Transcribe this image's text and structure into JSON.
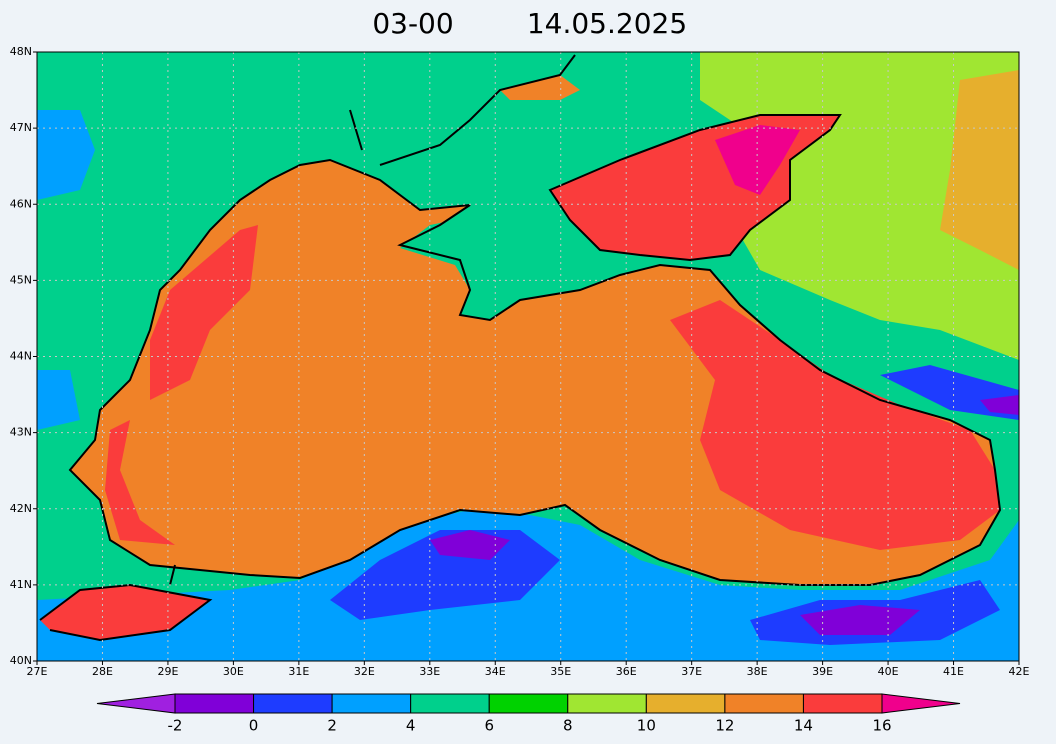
{
  "title": {
    "time": "03-00",
    "date": "14.05.2025"
  },
  "map": {
    "lat_labels": [
      "48N",
      "47N",
      "46N",
      "45N",
      "44N",
      "43N",
      "42N",
      "41N",
      "40N"
    ],
    "lon_labels": [
      "27E",
      "28E",
      "29E",
      "30E",
      "31E",
      "32E",
      "33E",
      "34E",
      "35E",
      "36E",
      "37E",
      "38E",
      "39E",
      "40E",
      "41E",
      "42E"
    ]
  },
  "colorbar": {
    "labels": [
      "-2",
      "0",
      "2",
      "4",
      "6",
      "8",
      "10",
      "12",
      "14",
      "16"
    ],
    "colors": [
      "#a020e0",
      "#8000d8",
      "#1e3cff",
      "#00a0ff",
      "#00d08c",
      "#00d200",
      "#a0e632",
      "#e6af2d",
      "#f08228",
      "#fa3c3c",
      "#f0008c"
    ]
  }
}
